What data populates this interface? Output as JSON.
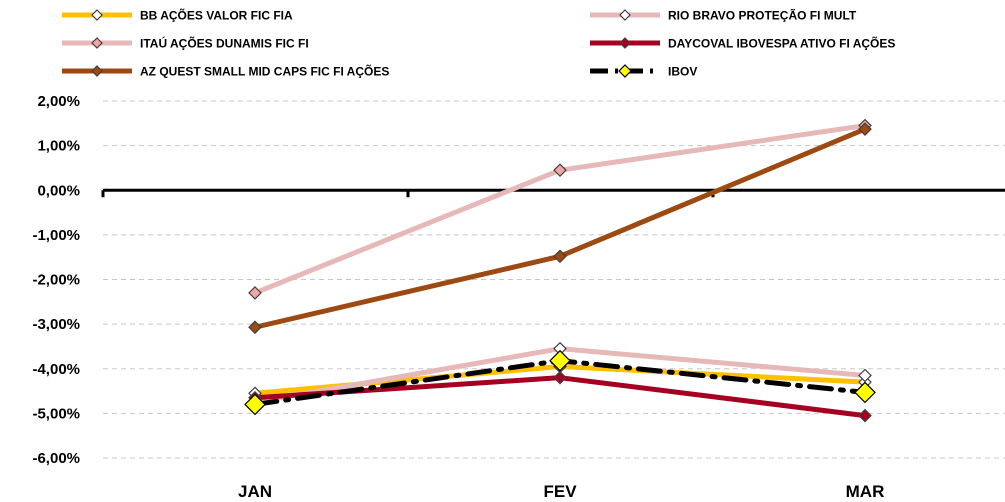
{
  "chart_data": {
    "type": "line",
    "categories": [
      "JAN",
      "FEV",
      "MAR"
    ],
    "ylim": [
      -6,
      2
    ],
    "y_ticks": [
      "2,00%",
      "1,00%",
      "0,00%",
      "-1,00%",
      "-2,00%",
      "-3,00%",
      "-4,00%",
      "-5,00%",
      "-6,00%"
    ],
    "y_tick_values": [
      2,
      1,
      0,
      -1,
      -2,
      -3,
      -4,
      -5,
      -6
    ],
    "grid": "horizontal dashed",
    "legend_position": "top",
    "series": [
      {
        "name": "BB AÇÕES VALOR FIC FIA",
        "values": [
          -4.55,
          -3.95,
          -4.3
        ],
        "color": "#FFC000",
        "marker_fill": "#FFFFFF",
        "style": "solid"
      },
      {
        "name": "RIO BRAVO PROTEÇÃO FI MULT",
        "values": [
          -4.75,
          -3.55,
          -4.15
        ],
        "color": "#E6B8B7",
        "marker_fill": "#FFFFFF",
        "style": "solid"
      },
      {
        "name": "ITAÚ AÇÕES DUNAMIS FIC FI",
        "values": [
          -2.3,
          0.45,
          1.45
        ],
        "color": "#E6B8B7",
        "marker_fill": "#F4A6A6",
        "style": "solid"
      },
      {
        "name": "DAYCOVAL IBOVESPA ATIVO FI AÇÕES",
        "values": [
          -4.65,
          -4.2,
          -5.05
        ],
        "color": "#A50021",
        "marker_fill": "#A50021",
        "style": "solid"
      },
      {
        "name": "AZ QUEST SMALL MID CAPS FIC FI AÇÕES",
        "values": [
          -3.07,
          -1.48,
          1.37
        ],
        "color": "#9C4A12",
        "marker_fill": "#9C4A12",
        "style": "solid"
      },
      {
        "name": "IBOV",
        "values": [
          -4.8,
          -3.82,
          -4.53
        ],
        "color": "#000000",
        "marker_fill": "#FFFF00",
        "style": "dashdot"
      }
    ]
  }
}
